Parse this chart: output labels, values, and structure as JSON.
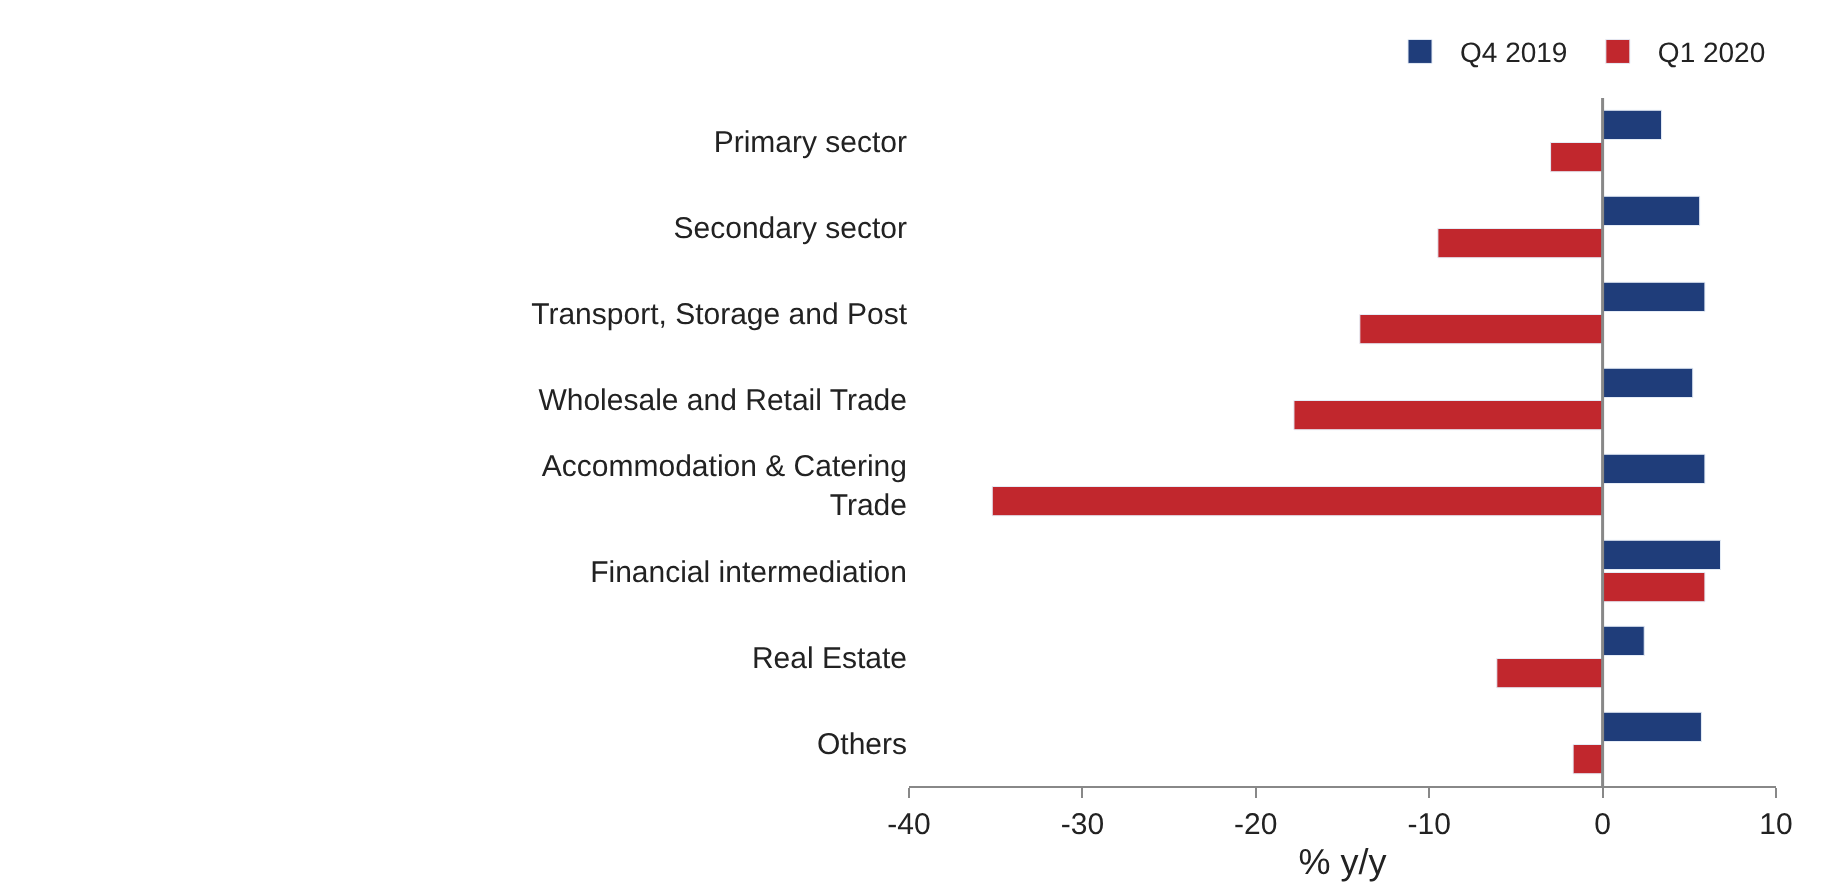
{
  "chart_data": {
    "type": "bar",
    "orientation": "horizontal",
    "categories": [
      "Primary sector",
      "Secondary sector",
      "Transport, Storage and Post",
      "Wholesale and Retail Trade",
      "Accommodation & Catering\nTrade",
      "Financial intermediation",
      "Real Estate",
      "Others"
    ],
    "series": [
      {
        "name": "Q4 2019",
        "color": "#1f3d7a",
        "values": [
          3.4,
          5.6,
          5.9,
          5.2,
          5.9,
          6.8,
          2.4,
          5.7
        ]
      },
      {
        "name": "Q1 2020",
        "color": "#c1272d",
        "values": [
          -3.0,
          -9.5,
          -14.0,
          -17.8,
          -35.2,
          5.9,
          -6.1,
          -1.7
        ]
      }
    ],
    "xlabel": "% y/y",
    "xlim": [
      -40,
      10
    ],
    "xticks": [
      -40,
      -30,
      -20,
      -10,
      0,
      10
    ],
    "ref_lines": [
      {
        "axis": "x",
        "value": 0,
        "color": "#888888"
      }
    ],
    "legend": "top right"
  }
}
